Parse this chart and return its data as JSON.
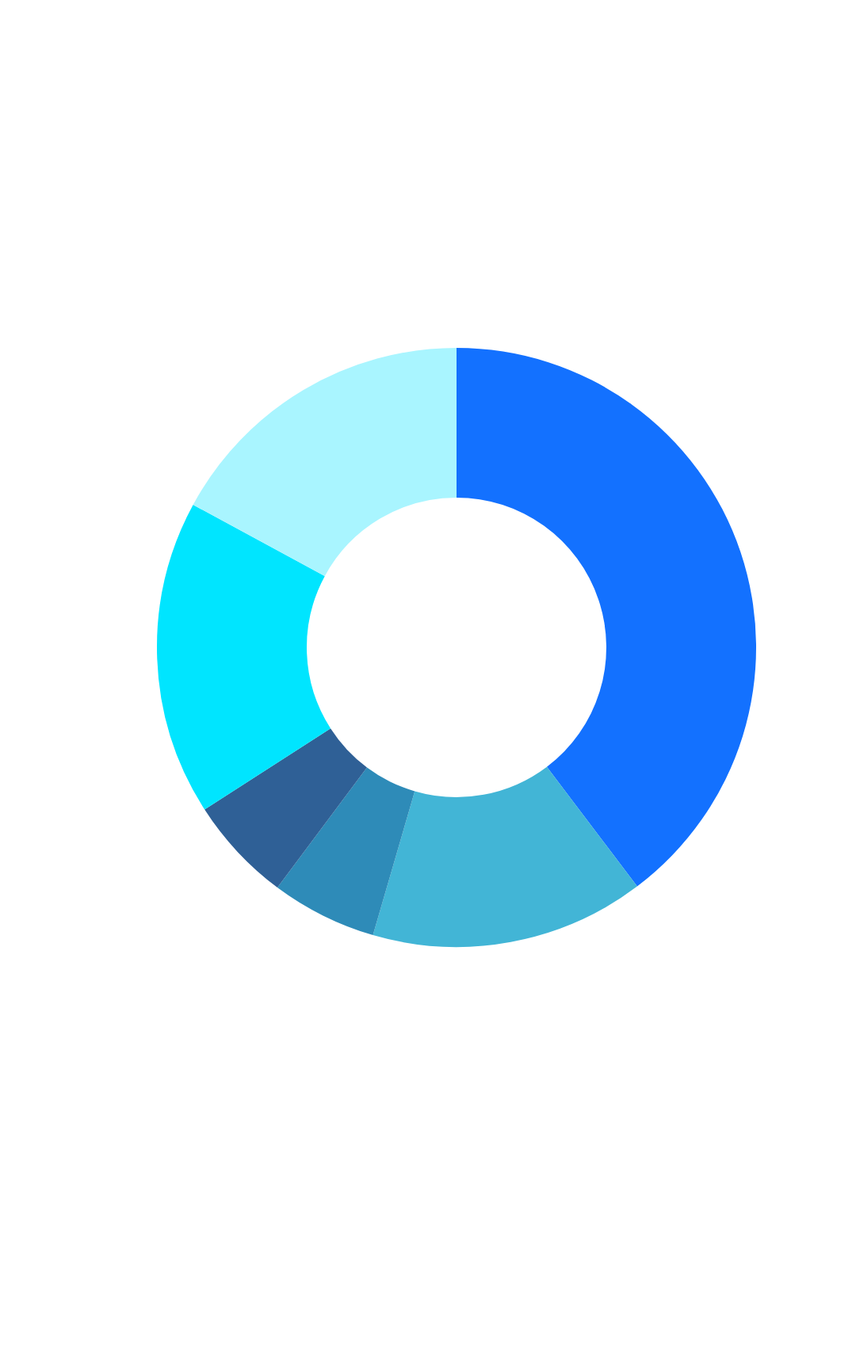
{
  "chart_data": {
    "type": "donut",
    "categories": [
      null,
      null,
      null,
      null,
      null,
      null
    ],
    "values": [
      39.7,
      14.8,
      5.7,
      5.7,
      17.0,
      17.1
    ],
    "colors": [
      "#1371ff",
      "#42b5d6",
      "#2e8bb8",
      "#2f6096",
      "#00e5ff",
      "#a9f5ff"
    ],
    "legend": false
  }
}
